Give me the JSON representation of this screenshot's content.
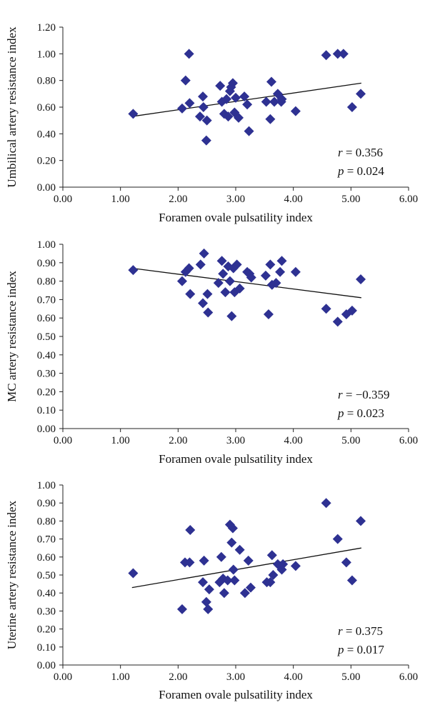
{
  "chart_data": [
    {
      "type": "scatter",
      "xlabel": "Foramen ovale pulsatility index",
      "ylabel": "Umbilical artery resistance index",
      "xlim": [
        0,
        6
      ],
      "ylim": [
        0,
        1.2
      ],
      "x_ticks": [
        "0.00",
        "1.00",
        "2.00",
        "3.00",
        "4.00",
        "5.00",
        "6.00"
      ],
      "y_ticks": [
        "0.00",
        "0.20",
        "0.40",
        "0.60",
        "0.80",
        "1.00",
        "1.20"
      ],
      "trendline": {
        "x": [
          1.2,
          5.18
        ],
        "y": [
          0.53,
          0.78
        ]
      },
      "stats": {
        "r_label": "r",
        "r_value": "= 0.356",
        "p_label": "p",
        "p_value": "= 0.024"
      },
      "points": [
        [
          1.22,
          0.55
        ],
        [
          2.07,
          0.59
        ],
        [
          2.13,
          0.8
        ],
        [
          2.19,
          1.0
        ],
        [
          2.2,
          0.63
        ],
        [
          2.38,
          0.53
        ],
        [
          2.43,
          0.68
        ],
        [
          2.44,
          0.6
        ],
        [
          2.5,
          0.5
        ],
        [
          2.49,
          0.35
        ],
        [
          2.73,
          0.76
        ],
        [
          2.76,
          0.64
        ],
        [
          2.8,
          0.55
        ],
        [
          2.84,
          0.66
        ],
        [
          2.87,
          0.53
        ],
        [
          2.9,
          0.72
        ],
        [
          2.92,
          0.75
        ],
        [
          2.95,
          0.78
        ],
        [
          2.98,
          0.56
        ],
        [
          3.0,
          0.67
        ],
        [
          3.05,
          0.52
        ],
        [
          3.15,
          0.68
        ],
        [
          3.2,
          0.62
        ],
        [
          3.23,
          0.42
        ],
        [
          3.53,
          0.64
        ],
        [
          3.6,
          0.51
        ],
        [
          3.62,
          0.79
        ],
        [
          3.67,
          0.64
        ],
        [
          3.73,
          0.7
        ],
        [
          3.79,
          0.64
        ],
        [
          3.8,
          0.66
        ],
        [
          4.04,
          0.57
        ],
        [
          4.57,
          0.99
        ],
        [
          4.77,
          1.0
        ],
        [
          4.87,
          1.0
        ],
        [
          5.02,
          0.6
        ],
        [
          5.17,
          0.7
        ]
      ]
    },
    {
      "type": "scatter",
      "xlabel": "Foramen ovale pulsatility index",
      "ylabel": "MC artery resistance index",
      "xlim": [
        0,
        6
      ],
      "ylim": [
        0,
        1
      ],
      "x_ticks": [
        "0.00",
        "1.00",
        "2.00",
        "3.00",
        "4.00",
        "5.00",
        "6.00"
      ],
      "y_ticks": [
        "0.00",
        "0.10",
        "0.20",
        "0.30",
        "0.40",
        "0.50",
        "0.60",
        "0.70",
        "0.80",
        "0.90",
        "1.00"
      ],
      "trendline": {
        "x": [
          1.2,
          5.18
        ],
        "y": [
          0.87,
          0.71
        ]
      },
      "stats": {
        "r_label": "r",
        "r_value": "= −0.359",
        "p_label": "p",
        "p_value": "= 0.023"
      },
      "points": [
        [
          1.22,
          0.86
        ],
        [
          2.07,
          0.8
        ],
        [
          2.13,
          0.85
        ],
        [
          2.19,
          0.87
        ],
        [
          2.21,
          0.73
        ],
        [
          2.39,
          0.89
        ],
        [
          2.43,
          0.68
        ],
        [
          2.45,
          0.95
        ],
        [
          2.51,
          0.73
        ],
        [
          2.52,
          0.63
        ],
        [
          2.7,
          0.79
        ],
        [
          2.76,
          0.91
        ],
        [
          2.78,
          0.84
        ],
        [
          2.82,
          0.74
        ],
        [
          2.87,
          0.88
        ],
        [
          2.9,
          0.8
        ],
        [
          2.93,
          0.61
        ],
        [
          2.96,
          0.87
        ],
        [
          2.98,
          0.74
        ],
        [
          3.02,
          0.89
        ],
        [
          3.07,
          0.76
        ],
        [
          3.2,
          0.85
        ],
        [
          3.24,
          0.84
        ],
        [
          3.27,
          0.82
        ],
        [
          3.52,
          0.83
        ],
        [
          3.57,
          0.62
        ],
        [
          3.6,
          0.89
        ],
        [
          3.63,
          0.78
        ],
        [
          3.7,
          0.79
        ],
        [
          3.77,
          0.85
        ],
        [
          3.8,
          0.91
        ],
        [
          4.04,
          0.85
        ],
        [
          4.57,
          0.65
        ],
        [
          4.77,
          0.58
        ],
        [
          4.92,
          0.62
        ],
        [
          5.02,
          0.64
        ],
        [
          5.17,
          0.81
        ]
      ]
    },
    {
      "type": "scatter",
      "xlabel": "Foramen ovale pulsatility index",
      "ylabel": "Uterine artery resistance index",
      "xlim": [
        0,
        6
      ],
      "ylim": [
        0,
        1
      ],
      "x_ticks": [
        "0.00",
        "1.00",
        "2.00",
        "3.00",
        "4.00",
        "5.00",
        "6.00"
      ],
      "y_ticks": [
        "0.00",
        "0.10",
        "0.20",
        "0.30",
        "0.40",
        "0.50",
        "0.60",
        "0.70",
        "0.80",
        "0.90",
        "1.00"
      ],
      "trendline": {
        "x": [
          1.2,
          5.18
        ],
        "y": [
          0.43,
          0.65
        ]
      },
      "stats": {
        "r_label": "r",
        "r_value": "= 0.375",
        "p_label": "p",
        "p_value": "= 0.017"
      },
      "points": [
        [
          1.22,
          0.51
        ],
        [
          2.07,
          0.31
        ],
        [
          2.12,
          0.57
        ],
        [
          2.2,
          0.57
        ],
        [
          2.21,
          0.75
        ],
        [
          2.43,
          0.46
        ],
        [
          2.45,
          0.58
        ],
        [
          2.49,
          0.35
        ],
        [
          2.52,
          0.31
        ],
        [
          2.54,
          0.42
        ],
        [
          2.72,
          0.46
        ],
        [
          2.75,
          0.6
        ],
        [
          2.78,
          0.48
        ],
        [
          2.8,
          0.4
        ],
        [
          2.86,
          0.47
        ],
        [
          2.9,
          0.78
        ],
        [
          2.93,
          0.68
        ],
        [
          2.95,
          0.76
        ],
        [
          2.96,
          0.53
        ],
        [
          2.98,
          0.47
        ],
        [
          3.07,
          0.64
        ],
        [
          3.16,
          0.4
        ],
        [
          3.22,
          0.58
        ],
        [
          3.26,
          0.43
        ],
        [
          3.54,
          0.46
        ],
        [
          3.6,
          0.46
        ],
        [
          3.63,
          0.61
        ],
        [
          3.65,
          0.5
        ],
        [
          3.73,
          0.56
        ],
        [
          3.8,
          0.53
        ],
        [
          3.82,
          0.56
        ],
        [
          4.04,
          0.55
        ],
        [
          4.57,
          0.9
        ],
        [
          4.77,
          0.7
        ],
        [
          4.92,
          0.57
        ],
        [
          5.02,
          0.47
        ],
        [
          5.17,
          0.8
        ]
      ]
    }
  ],
  "colors": {
    "marker": "#2e3192",
    "trend": "#111111",
    "axis": "#222222"
  }
}
